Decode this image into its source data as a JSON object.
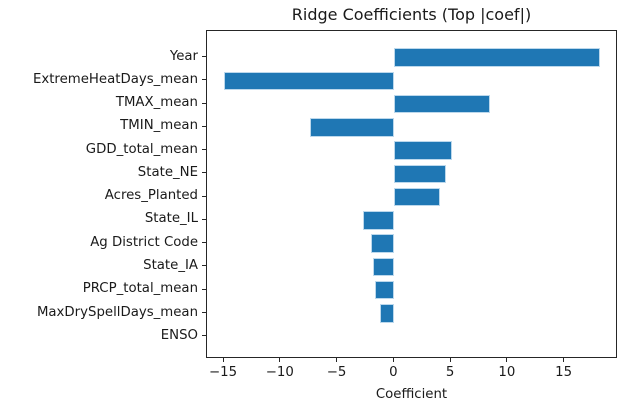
{
  "chart_data": {
    "type": "bar",
    "orientation": "horizontal",
    "title": "Ridge Coefficients (Top |coef|)",
    "xlabel": "Coefficient",
    "ylabel": "",
    "categories": [
      "Year",
      "ExtremeHeatDays_mean",
      "TMAX_mean",
      "TMIN_mean",
      "GDD_total_mean",
      "State_NE",
      "Acres_Planted",
      "State_IL",
      "Ag District Code",
      "State_IA",
      "PRCP_total_mean",
      "MaxDrySpellDays_mean",
      "ENSO"
    ],
    "values": [
      18.1,
      -15.0,
      8.4,
      -7.4,
      5.1,
      4.6,
      4.0,
      -2.8,
      -2.1,
      -1.9,
      -1.7,
      -1.3,
      0.0
    ],
    "xlim": [
      -16.5,
      19.7
    ],
    "xticks": [
      -15,
      -10,
      -5,
      0,
      5,
      10,
      15
    ],
    "grid": false,
    "legend": null,
    "bar_color": "#1f77b4",
    "bar_edge_color": "#bcd8ec",
    "axis_color": "#262626",
    "text_color": "#1a1a1a",
    "background_color": "#ffffff"
  }
}
